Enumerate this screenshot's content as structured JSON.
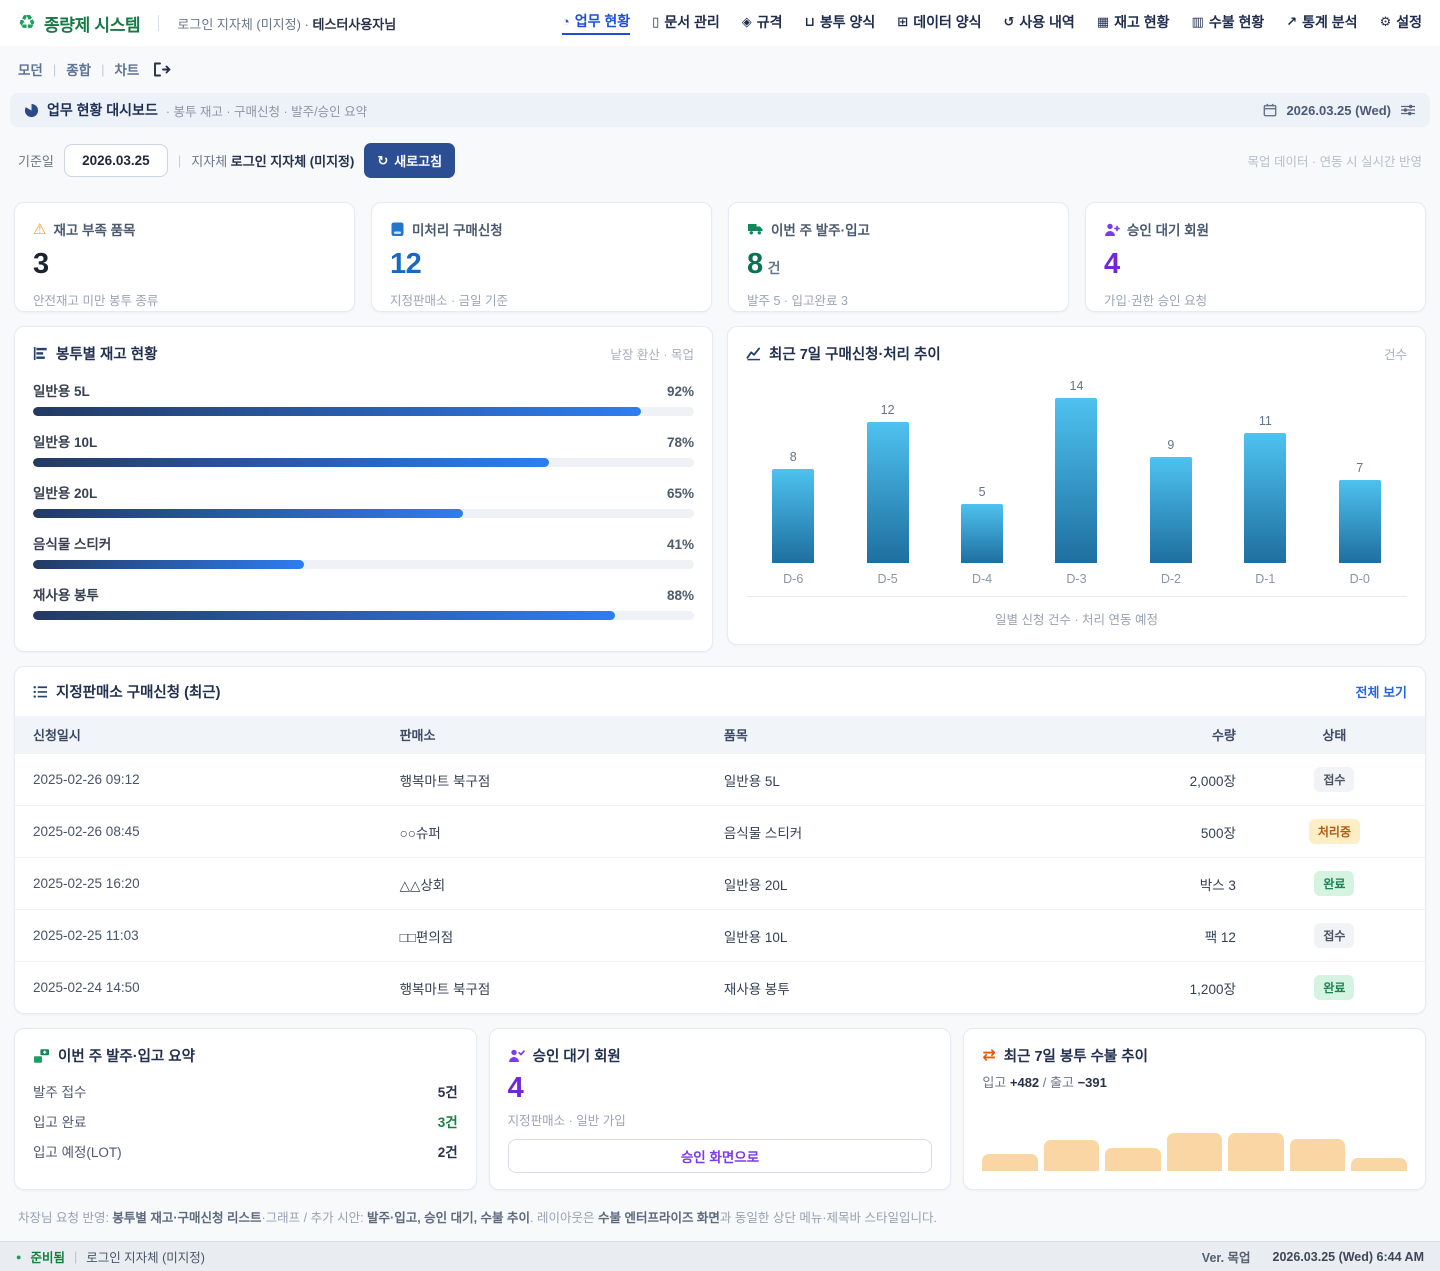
{
  "header": {
    "logo": "종량제 시스템",
    "login_context": "로그인 지자체 (미지정) ·",
    "user_name": "테스터사용자님",
    "nav": [
      {
        "id": "work-status",
        "label": "업무 현황",
        "icon": "dashboard-icon",
        "glyph": "◔",
        "active": true
      },
      {
        "id": "documents",
        "label": "문서 관리",
        "icon": "document-icon",
        "glyph": "▯",
        "active": false
      },
      {
        "id": "specs",
        "label": "규격",
        "icon": "spec-icon",
        "glyph": "◈",
        "active": false
      },
      {
        "id": "bag-forms",
        "label": "봉투 양식",
        "icon": "bag-icon",
        "glyph": "⊔",
        "active": false
      },
      {
        "id": "data-forms",
        "label": "데이터 양식",
        "icon": "data-form-icon",
        "glyph": "⊞",
        "active": false
      },
      {
        "id": "usage-history",
        "label": "사용 내역",
        "icon": "history-icon",
        "glyph": "↺",
        "active": false
      },
      {
        "id": "inventory",
        "label": "재고 현황",
        "icon": "inventory-icon",
        "glyph": "▦",
        "active": false
      },
      {
        "id": "ledger",
        "label": "수불 현황",
        "icon": "ledger-icon",
        "glyph": "▥",
        "active": false
      },
      {
        "id": "statistics",
        "label": "통계 분석",
        "icon": "line-chart-icon",
        "glyph": "↗",
        "active": false
      },
      {
        "id": "settings",
        "label": "설정",
        "icon": "gear-icon",
        "glyph": "⚙",
        "active": false
      }
    ]
  },
  "view_switcher": {
    "ids": [
      "modern",
      "combined",
      "chart"
    ],
    "items": [
      "모던",
      "종합",
      "차트"
    ]
  },
  "title_bar": {
    "title": "업무 현황 대시보드",
    "subtitle": "· 봉투 재고 · 구매신청 · 발주/승인 요약",
    "date": "2026.03.25 (Wed)"
  },
  "filter_bar": {
    "date_label": "기준일",
    "date_value": "2026.03.25",
    "sep": "|",
    "org_label": "지자체",
    "org_value": "로그인 지자체 (미지정)",
    "refresh_glyph": "↻",
    "refresh_label": "새로고침",
    "note": "목업 데이터 · 연동 시 실시간 반영"
  },
  "kpis": [
    {
      "icon": "warning-icon",
      "label": "재고 부족 품목",
      "value": "3",
      "unit": "",
      "sub": "안전재고 미만 봉투 종류",
      "value_color": "#1b2433"
    },
    {
      "icon": "clipboard-icon",
      "label": "미처리 구매신청",
      "value": "12",
      "unit": "",
      "sub": "지정판매소 · 금일 기준",
      "value_color": "#1769c4"
    },
    {
      "icon": "truck-icon",
      "label": "이번 주 발주·입고",
      "value": "8",
      "unit": "건",
      "sub": "발주 5 · 입고완료 3",
      "value_color": "#0e7150"
    },
    {
      "icon": "user-plus-icon",
      "label": "승인 대기 회원",
      "value": "4",
      "unit": "",
      "sub": "가입·권한 승인 요청",
      "value_color": "#7226d9"
    }
  ],
  "chart_data": [
    {
      "id": "stock-levels",
      "type": "bar",
      "orientation": "horizontal",
      "title": "봉투별 재고 현황",
      "note": "낱장 환산 · 목업",
      "categories": [
        "일반용 5L",
        "일반용 10L",
        "일반용 20L",
        "음식물 스티커",
        "재사용 봉투"
      ],
      "values": [
        92,
        78,
        65,
        41,
        88
      ],
      "unit": "%",
      "ylim": [
        0,
        100
      ]
    },
    {
      "id": "weekly-requests",
      "type": "bar",
      "title": "최근 7일 구매신청·처리 추이",
      "ylabel": "건수",
      "categories": [
        "D-6",
        "D-5",
        "D-4",
        "D-3",
        "D-2",
        "D-1",
        "D-0"
      ],
      "values": [
        8,
        12,
        5,
        14,
        9,
        11,
        7
      ],
      "caption": "일별 신청 건수 · 처리 연동 예정",
      "ylim": [
        0,
        14
      ]
    },
    {
      "id": "envelope-flow",
      "type": "bar",
      "title": "최근 7일 봉투 수불 추이",
      "values": [
        45,
        82,
        60,
        100,
        100,
        83,
        33
      ],
      "ylim": [
        0,
        100
      ]
    }
  ],
  "requests_table": {
    "title": "지정판매소 구매신청 (최근)",
    "view_all": "전체 보기",
    "headers": [
      "신청일시",
      "판매소",
      "품목",
      "수량",
      "상태"
    ],
    "rows": [
      {
        "datetime": "2025-02-26 09:12",
        "store": "행복마트 북구점",
        "item": "일반용 5L",
        "qty": "2,000장",
        "status": "접수",
        "status_type": "gray"
      },
      {
        "datetime": "2025-02-26 08:45",
        "store": "○○슈퍼",
        "item": "음식물 스티커",
        "qty": "500장",
        "status": "처리중",
        "status_type": "yellow"
      },
      {
        "datetime": "2025-02-25 16:20",
        "store": "△△상회",
        "item": "일반용 20L",
        "qty": "박스 3",
        "status": "완료",
        "status_type": "green"
      },
      {
        "datetime": "2025-02-25 11:03",
        "store": "□□편의점",
        "item": "일반용 10L",
        "qty": "팩 12",
        "status": "접수",
        "status_type": "gray"
      },
      {
        "datetime": "2025-02-24 14:50",
        "store": "행복마트 북구점",
        "item": "재사용 봉투",
        "qty": "1,200장",
        "status": "완료",
        "status_type": "green"
      }
    ]
  },
  "order_summary": {
    "title": "이번 주 발주·입고 요약",
    "rows": [
      {
        "label": "발주 접수",
        "value": "5건",
        "highlight": false
      },
      {
        "label": "입고 완료",
        "value": "3건",
        "highlight": true
      },
      {
        "label": "입고 예정(LOT)",
        "value": "2건",
        "highlight": false
      }
    ]
  },
  "approval": {
    "title": "승인 대기 회원",
    "value": "4",
    "sub": "지정판매소 · 일반 가입",
    "button": "승인 화면으로"
  },
  "flow": {
    "title": "최근 7일 봉투 수불 추이",
    "in_label": "입고",
    "in_value": "+482",
    "sep": "/",
    "out_label": "출고",
    "out_value": "−391"
  },
  "footnote": {
    "segments": [
      {
        "text": "차장님 요청 반영: ",
        "bold": false
      },
      {
        "text": "봉투별 재고·구매신청 리스트",
        "bold": true
      },
      {
        "text": "·그래프 / 추가 시안: ",
        "bold": false
      },
      {
        "text": "발주·입고, 승인 대기, 수불 추이",
        "bold": true
      },
      {
        "text": ". 레이아웃은 ",
        "bold": false
      },
      {
        "text": "수불 엔터프라이즈 화면",
        "bold": true
      },
      {
        "text": "과 동일한 상단 메뉴·제목바 스타일입니다.",
        "bold": false
      }
    ]
  },
  "statusbar": {
    "status": "준비됨",
    "org": "로그인 지자체 (미지정)",
    "version": "Ver. 목업",
    "datetime": "2026.03.25 (Wed) 6:44 AM"
  },
  "colors": {
    "brand_green": "#178a4c",
    "accent_blue": "#1d4ed8",
    "button_navy": "#2c4f94",
    "purple": "#7226d9",
    "warn_orange": "#f29a1b",
    "progress_gradient": [
      "#233a63",
      "#2e7df0"
    ],
    "chart_bar_gradient": [
      "#4ec2f0",
      "#1e6f9f"
    ],
    "flow_bar": "#f9d6a4",
    "badge_gray": "#f1f3f6",
    "badge_yellow": "#fdeec6",
    "badge_green": "#d4f3e0"
  }
}
